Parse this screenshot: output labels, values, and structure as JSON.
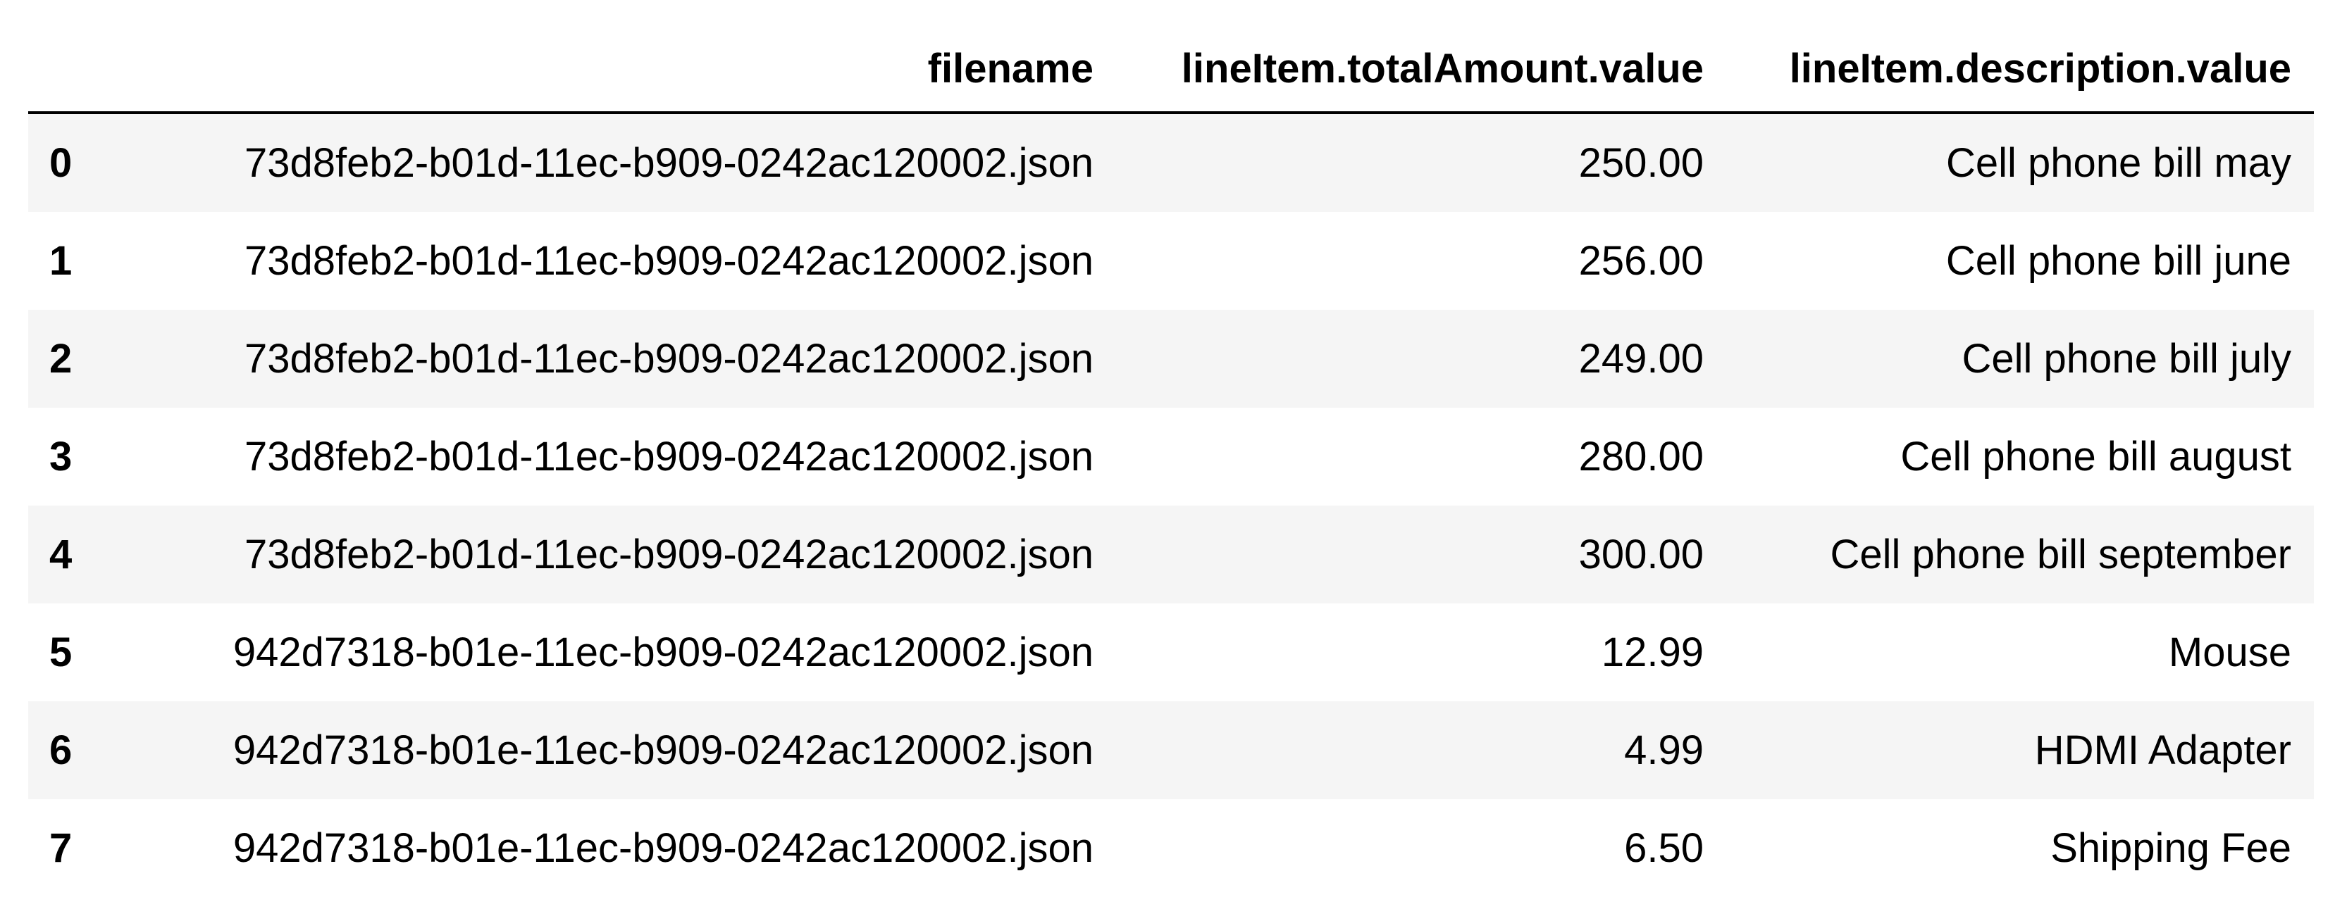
{
  "table": {
    "columns": [
      "",
      "filename",
      "lineItem.totalAmount.value",
      "lineItem.description.value"
    ],
    "rows": [
      {
        "index": "0",
        "filename": "73d8feb2-b01d-11ec-b909-0242ac120002.json",
        "amount": "250.00",
        "description": "Cell phone bill may"
      },
      {
        "index": "1",
        "filename": "73d8feb2-b01d-11ec-b909-0242ac120002.json",
        "amount": "256.00",
        "description": "Cell phone bill june"
      },
      {
        "index": "2",
        "filename": "73d8feb2-b01d-11ec-b909-0242ac120002.json",
        "amount": "249.00",
        "description": "Cell phone bill july"
      },
      {
        "index": "3",
        "filename": "73d8feb2-b01d-11ec-b909-0242ac120002.json",
        "amount": "280.00",
        "description": "Cell phone bill august"
      },
      {
        "index": "4",
        "filename": "73d8feb2-b01d-11ec-b909-0242ac120002.json",
        "amount": "300.00",
        "description": "Cell phone bill september"
      },
      {
        "index": "5",
        "filename": "942d7318-b01e-11ec-b909-0242ac120002.json",
        "amount": "12.99",
        "description": "Mouse"
      },
      {
        "index": "6",
        "filename": "942d7318-b01e-11ec-b909-0242ac120002.json",
        "amount": "4.99",
        "description": "HDMI Adapter"
      },
      {
        "index": "7",
        "filename": "942d7318-b01e-11ec-b909-0242ac120002.json",
        "amount": "6.50",
        "description": "Shipping Fee"
      }
    ]
  }
}
